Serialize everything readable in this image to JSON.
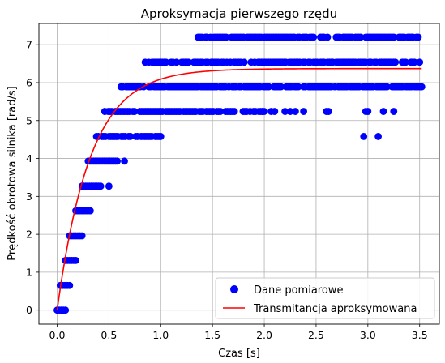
{
  "chart_data": {
    "type": "scatter",
    "title": "Aproksymacja pierwszego rzędu",
    "xlabel": "Czas [s]",
    "ylabel": "Prędkość obrotowa silnika [rad/s]",
    "xlim": [
      -0.176,
      3.69
    ],
    "ylim": [
      -0.37,
      7.56
    ],
    "xticks": [
      0.0,
      0.5,
      1.0,
      1.5,
      2.0,
      2.5,
      3.0,
      3.5
    ],
    "xtick_labels": [
      "0.0",
      "0.5",
      "1.0",
      "1.5",
      "2.0",
      "2.5",
      "3.0",
      "3.5"
    ],
    "yticks": [
      0,
      1,
      2,
      3,
      4,
      5,
      6,
      7
    ],
    "ytick_labels": [
      "0",
      "1",
      "2",
      "3",
      "4",
      "5",
      "6",
      "7"
    ],
    "grid": true,
    "legend_position": "lower-right",
    "colors": {
      "measurements": "#0000ff",
      "model": "#ff0000"
    },
    "series": [
      {
        "name": "Dane pomiarowe",
        "kind": "scatter",
        "color": "#0000ff",
        "levels": [
          {
            "y": 0.0,
            "x_ranges": [
              [
                0.0,
                0.08
              ]
            ]
          },
          {
            "y": 0.65,
            "x_ranges": [
              [
                0.03,
                0.12
              ]
            ]
          },
          {
            "y": 1.31,
            "x_ranges": [
              [
                0.08,
                0.18
              ]
            ]
          },
          {
            "y": 1.96,
            "x_ranges": [
              [
                0.12,
                0.24
              ]
            ]
          },
          {
            "y": 2.62,
            "x_ranges": [
              [
                0.18,
                0.32
              ]
            ]
          },
          {
            "y": 3.27,
            "x_ranges": [
              [
                0.24,
                0.42
              ]
            ],
            "x_extra": [
              0.5
            ]
          },
          {
            "y": 3.93,
            "x_ranges": [
              [
                0.3,
                0.58
              ]
            ],
            "x_extra": [
              0.65
            ]
          },
          {
            "y": 4.58,
            "x_ranges": [
              [
                0.38,
                1.0
              ]
            ],
            "x_extra": [
              2.96,
              3.1
            ]
          },
          {
            "y": 5.24,
            "x_ranges": [
              [
                0.46,
                2.1
              ]
            ],
            "x_extra": [
              2.2,
              2.25,
              2.3,
              2.38,
              2.6,
              2.62,
              2.98,
              3.0,
              3.15,
              3.25
            ]
          },
          {
            "y": 5.89,
            "x_ranges": [
              [
                0.6,
                3.52
              ]
            ]
          },
          {
            "y": 6.54,
            "x_ranges": [
              [
                0.85,
                3.5
              ]
            ]
          },
          {
            "y": 7.2,
            "x_ranges": [
              [
                1.38,
                3.52
              ]
            ],
            "x_extra": [
              1.36
            ]
          }
        ]
      },
      {
        "name": "Transmitancja aproksymowana",
        "kind": "line",
        "color": "#ff0000",
        "function": "K*(1-exp(-t/T))",
        "K": 6.37,
        "T": 0.32,
        "x_range": [
          0.0,
          3.52
        ]
      }
    ]
  }
}
